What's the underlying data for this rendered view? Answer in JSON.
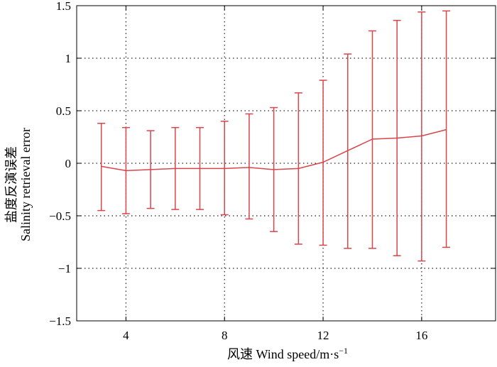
{
  "chart_data": {
    "type": "line",
    "xlabel": "风速 Wind speed/m·s",
    "xlabel_sup": "−1",
    "ylabel": "盐度反演误差",
    "ylabel_en": "Salinity retrieval error",
    "xlim": [
      2,
      19
    ],
    "ylim": [
      -1.5,
      1.5
    ],
    "x_ticks": [
      4,
      8,
      12,
      16
    ],
    "x_tick_labels": [
      "4",
      "8",
      "12",
      "16"
    ],
    "y_ticks": [
      1.5,
      1,
      0.5,
      0,
      -0.5,
      -1,
      -1.5
    ],
    "y_tick_labels": [
      "1.5",
      "1",
      "0.5",
      "0",
      "−0.5",
      "−1",
      "−1.5"
    ],
    "grid": true,
    "grid_style": "dotted",
    "series": [
      {
        "x": [
          3,
          4,
          5,
          6,
          7,
          8,
          9,
          10,
          11,
          12,
          13,
          14,
          15,
          16,
          17
        ],
        "mean": [
          -0.03,
          -0.07,
          -0.06,
          -0.05,
          -0.05,
          -0.05,
          -0.04,
          -0.06,
          -0.05,
          0.01,
          0.12,
          0.23,
          0.24,
          0.26,
          0.32
        ],
        "upper": [
          0.38,
          0.34,
          0.31,
          0.34,
          0.34,
          0.4,
          0.47,
          0.53,
          0.67,
          0.79,
          1.04,
          1.26,
          1.36,
          1.44,
          1.45
        ],
        "lower": [
          -0.45,
          -0.48,
          -0.43,
          -0.44,
          -0.44,
          -0.49,
          -0.53,
          -0.65,
          -0.77,
          -0.78,
          -0.81,
          -0.81,
          -0.88,
          -0.93,
          -0.8
        ],
        "color": "#d9454a"
      }
    ],
    "axes_color": "#000000",
    "grid_color": "#222222"
  }
}
